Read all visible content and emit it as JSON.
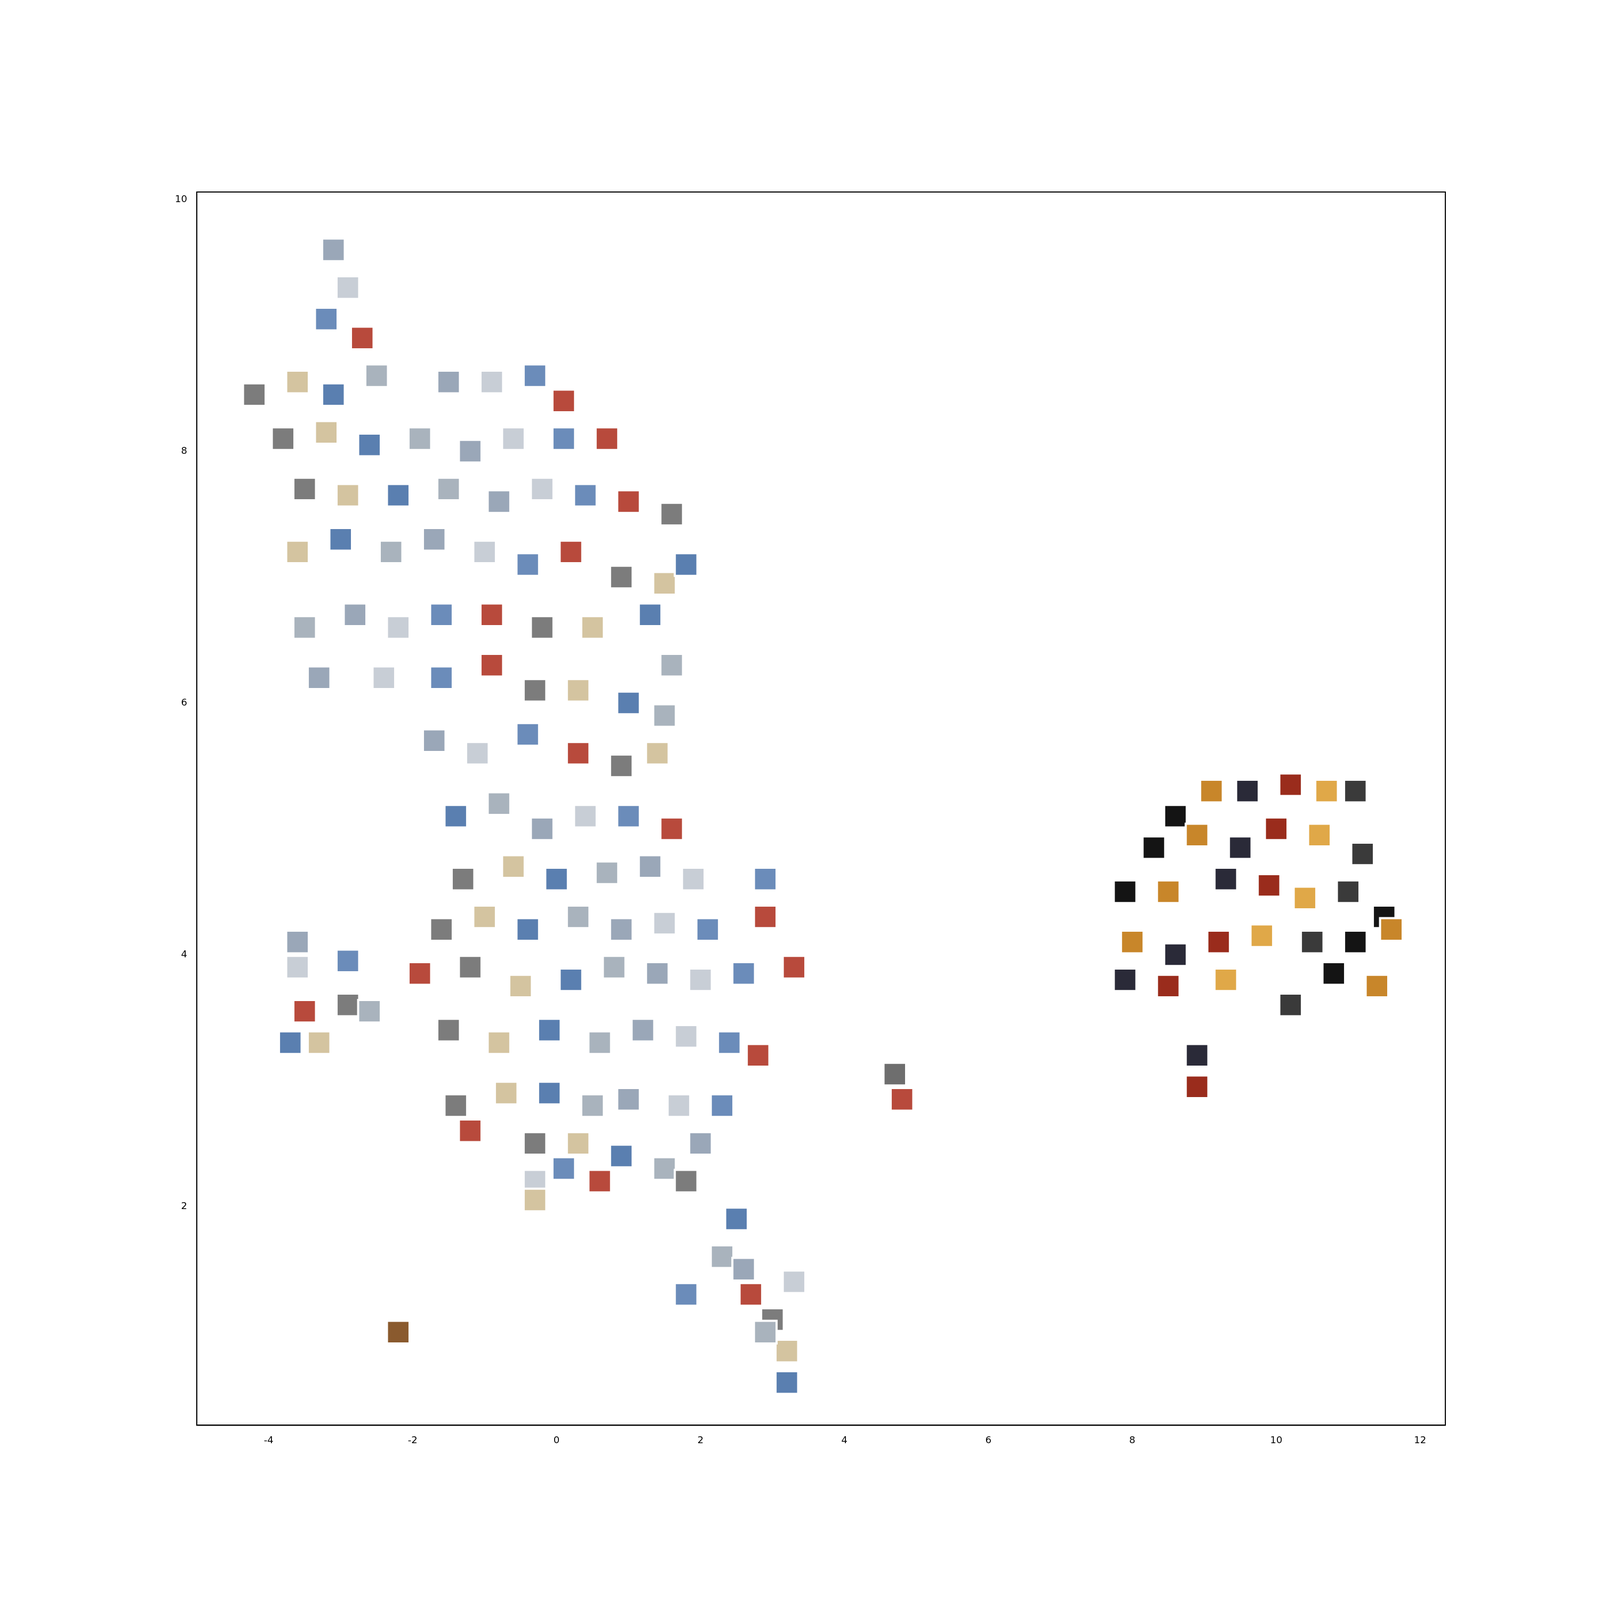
{
  "chart_data": {
    "type": "scatter",
    "marker": "square",
    "grid": false,
    "xlim": [
      -5.0,
      12.35
    ],
    "ylim": [
      0.26,
      10.06
    ],
    "xticks": [
      -4,
      -2,
      0,
      2,
      4,
      6,
      8,
      10,
      12
    ],
    "yticks": [
      2,
      4,
      6,
      8,
      10
    ],
    "x": [
      -3.1,
      -2.9,
      -3.2,
      -2.7,
      -4.2,
      -3.6,
      -3.1,
      -2.5,
      -1.5,
      -0.9,
      -0.3,
      0.1,
      -3.8,
      -3.2,
      -2.6,
      -1.9,
      -1.2,
      -0.6,
      0.1,
      0.7,
      -3.5,
      -2.9,
      -2.2,
      -1.5,
      -0.8,
      -0.2,
      0.4,
      1.0,
      1.6,
      -3.6,
      -3.0,
      -2.3,
      -1.7,
      -1.0,
      -0.4,
      0.2,
      0.9,
      1.5,
      1.8,
      -3.5,
      -2.8,
      -2.2,
      -1.6,
      -0.9,
      -0.2,
      0.5,
      1.3,
      1.6,
      -3.3,
      -2.4,
      -1.6,
      -0.9,
      -0.3,
      0.3,
      1.0,
      1.5,
      -1.7,
      -1.1,
      -0.4,
      0.3,
      0.9,
      1.4,
      -1.4,
      -0.8,
      -0.2,
      0.4,
      1.0,
      1.6,
      -1.3,
      -0.6,
      0.0,
      0.7,
      1.3,
      1.9,
      2.9,
      2.9,
      -1.6,
      -1.0,
      -0.4,
      0.3,
      0.9,
      1.5,
      2.1,
      -1.9,
      -1.2,
      -0.5,
      0.2,
      0.8,
      1.4,
      2.0,
      2.6,
      3.3,
      -1.5,
      -0.8,
      -0.1,
      0.6,
      1.2,
      1.8,
      2.4,
      2.8,
      -1.4,
      -0.7,
      -0.1,
      0.5,
      1.0,
      1.7,
      2.3,
      -1.2,
      -0.3,
      0.3,
      0.9,
      1.5,
      2.0,
      -0.3,
      0.1,
      0.6,
      1.8,
      -0.3,
      2.5,
      2.3,
      2.6,
      3.3,
      1.8,
      2.7,
      3.0,
      3.2,
      3.2,
      2.9,
      -3.6,
      -3.6,
      -2.9,
      -3.5,
      -2.9,
      -3.3,
      -3.7,
      -2.6,
      -2.2,
      4.8,
      4.7,
      8.6,
      9.1,
      9.6,
      10.2,
      10.7,
      11.1,
      8.3,
      8.9,
      9.5,
      10.0,
      10.6,
      11.2,
      7.9,
      8.5,
      9.3,
      9.9,
      10.4,
      11.0,
      11.5,
      8.0,
      8.6,
      9.2,
      9.8,
      10.5,
      11.1,
      11.6,
      7.9,
      8.5,
      9.3,
      10.2,
      10.8,
      11.4,
      8.9,
      8.9
    ],
    "y": [
      9.6,
      9.3,
      9.05,
      8.9,
      8.45,
      8.55,
      8.45,
      8.6,
      8.55,
      8.55,
      8.6,
      8.4,
      8.1,
      8.15,
      8.05,
      8.1,
      8.0,
      8.1,
      8.1,
      8.1,
      7.7,
      7.65,
      7.65,
      7.7,
      7.6,
      7.7,
      7.65,
      7.6,
      7.5,
      7.2,
      7.3,
      7.2,
      7.3,
      7.2,
      7.1,
      7.2,
      7.0,
      6.95,
      7.1,
      6.6,
      6.7,
      6.6,
      6.7,
      6.7,
      6.6,
      6.6,
      6.7,
      6.3,
      6.2,
      6.2,
      6.2,
      6.3,
      6.1,
      6.1,
      6.0,
      5.9,
      5.7,
      5.6,
      5.75,
      5.6,
      5.5,
      5.6,
      5.1,
      5.2,
      5.0,
      5.1,
      5.1,
      5.0,
      4.6,
      4.7,
      4.6,
      4.65,
      4.7,
      4.6,
      4.6,
      4.3,
      4.2,
      4.3,
      4.2,
      4.3,
      4.2,
      4.25,
      4.2,
      3.85,
      3.9,
      3.75,
      3.8,
      3.9,
      3.85,
      3.8,
      3.85,
      3.9,
      3.4,
      3.3,
      3.4,
      3.3,
      3.4,
      3.35,
      3.3,
      3.2,
      2.8,
      2.9,
      2.9,
      2.8,
      2.85,
      2.8,
      2.8,
      2.6,
      2.5,
      2.5,
      2.4,
      2.3,
      2.5,
      2.2,
      2.3,
      2.2,
      2.2,
      2.05,
      1.9,
      1.6,
      1.5,
      1.4,
      1.3,
      1.3,
      1.1,
      0.85,
      0.6,
      1.0,
      4.1,
      3.9,
      3.95,
      3.55,
      3.6,
      3.3,
      3.3,
      3.55,
      1.0,
      2.85,
      3.05,
      5.1,
      5.3,
      5.3,
      5.35,
      5.3,
      5.3,
      4.85,
      4.95,
      4.85,
      5.0,
      4.95,
      4.8,
      4.5,
      4.5,
      4.6,
      4.55,
      4.45,
      4.5,
      4.3,
      4.1,
      4.0,
      4.1,
      4.15,
      4.1,
      4.1,
      4.2,
      3.8,
      3.75,
      3.8,
      3.6,
      3.85,
      3.75,
      3.2,
      2.95
    ],
    "colors": [
      "#9aa7b8",
      "#c8ced6",
      "#6b8cba",
      "#b84a3c",
      "#7c7c7c",
      "#d4c4a0",
      "#5a7fb0",
      "#a9b3bd",
      "#9aa7b8",
      "#c8ced6",
      "#6b8cba",
      "#b84a3c",
      "#7c7c7c",
      "#d4c4a0",
      "#5a7fb0",
      "#a9b3bd",
      "#9aa7b8",
      "#c8ced6",
      "#6b8cba",
      "#b84a3c",
      "#7c7c7c",
      "#d4c4a0",
      "#5a7fb0",
      "#a9b3bd",
      "#9aa7b8",
      "#c8ced6",
      "#6b8cba",
      "#b84a3c",
      "#7c7c7c",
      "#d4c4a0",
      "#5a7fb0",
      "#a9b3bd",
      "#9aa7b8",
      "#c8ced6",
      "#6b8cba",
      "#b84a3c",
      "#7c7c7c",
      "#d4c4a0",
      "#5a7fb0",
      "#a9b3bd",
      "#9aa7b8",
      "#c8ced6",
      "#6b8cba",
      "#b84a3c",
      "#7c7c7c",
      "#d4c4a0",
      "#5a7fb0",
      "#a9b3bd",
      "#9aa7b8",
      "#c8ced6",
      "#6b8cba",
      "#b84a3c",
      "#7c7c7c",
      "#d4c4a0",
      "#5a7fb0",
      "#a9b3bd",
      "#9aa7b8",
      "#c8ced6",
      "#6b8cba",
      "#b84a3c",
      "#7c7c7c",
      "#d4c4a0",
      "#5a7fb0",
      "#a9b3bd",
      "#9aa7b8",
      "#c8ced6",
      "#6b8cba",
      "#b84a3c",
      "#7c7c7c",
      "#d4c4a0",
      "#5a7fb0",
      "#a9b3bd",
      "#9aa7b8",
      "#c8ced6",
      "#6b8cba",
      "#b84a3c",
      "#7c7c7c",
      "#d4c4a0",
      "#5a7fb0",
      "#a9b3bd",
      "#9aa7b8",
      "#c8ced6",
      "#6b8cba",
      "#b84a3c",
      "#7c7c7c",
      "#d4c4a0",
      "#5a7fb0",
      "#a9b3bd",
      "#9aa7b8",
      "#c8ced6",
      "#6b8cba",
      "#b84a3c",
      "#7c7c7c",
      "#d4c4a0",
      "#5a7fb0",
      "#a9b3bd",
      "#9aa7b8",
      "#c8ced6",
      "#6b8cba",
      "#b84a3c",
      "#7c7c7c",
      "#d4c4a0",
      "#5a7fb0",
      "#a9b3bd",
      "#9aa7b8",
      "#c8ced6",
      "#6b8cba",
      "#b84a3c",
      "#7c7c7c",
      "#d4c4a0",
      "#5a7fb0",
      "#a9b3bd",
      "#9aa7b8",
      "#c8ced6",
      "#6b8cba",
      "#b84a3c",
      "#7c7c7c",
      "#d4c4a0",
      "#5a7fb0",
      "#a9b3bd",
      "#9aa7b8",
      "#c8ced6",
      "#6b8cba",
      "#b84a3c",
      "#7c7c7c",
      "#d4c4a0",
      "#5a7fb0",
      "#a9b3bd",
      "#9aa7b8",
      "#c8ced6",
      "#6b8cba",
      "#b84a3c",
      "#7c7c7c",
      "#d4c4a0",
      "#5a7fb0",
      "#a9b3bd",
      "#8a5a2e",
      "#b84a3c",
      "#6e6e6e",
      "#141414",
      "#c8862a",
      "#2a2a38",
      "#9a2c1c",
      "#e0a848",
      "#3a3a3a",
      "#141414",
      "#c8862a",
      "#2a2a38",
      "#9a2c1c",
      "#e0a848",
      "#3a3a3a",
      "#141414",
      "#c8862a",
      "#2a2a38",
      "#9a2c1c",
      "#e0a848",
      "#3a3a3a",
      "#141414",
      "#c8862a",
      "#2a2a38",
      "#9a2c1c",
      "#e0a848",
      "#3a3a3a",
      "#141414",
      "#c8862a",
      "#2a2a38",
      "#9a2c1c",
      "#e0a848",
      "#3a3a3a",
      "#141414",
      "#c8862a",
      "#2a2a38",
      "#9a2c1c"
    ]
  }
}
